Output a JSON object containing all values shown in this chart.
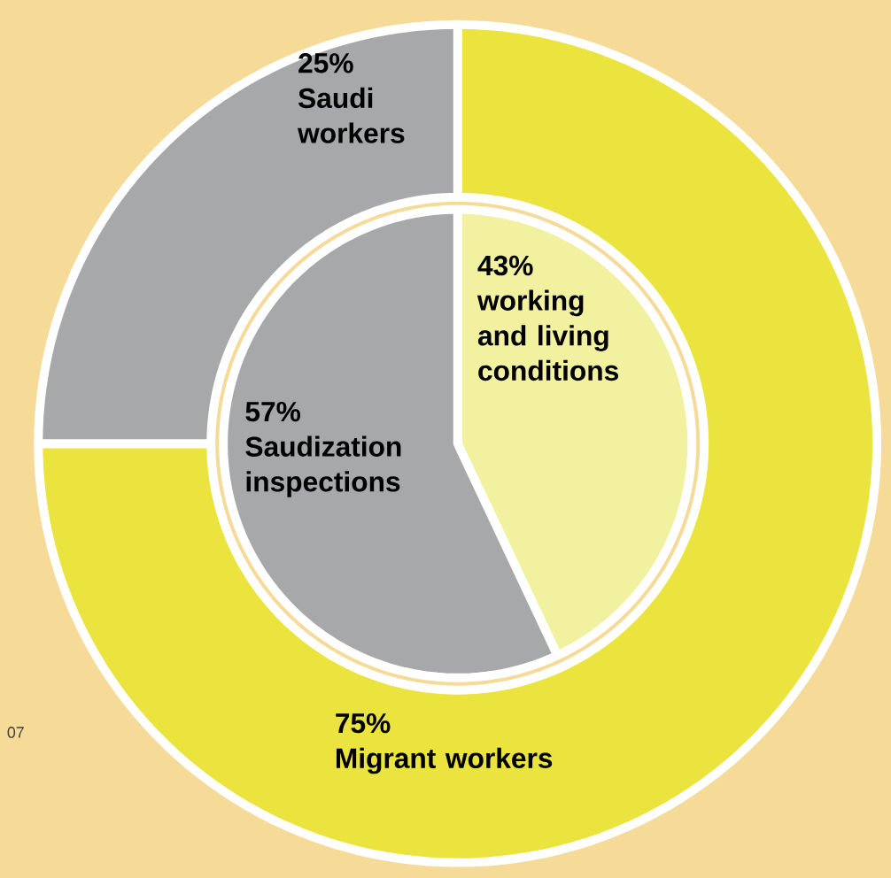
{
  "chart_data": [
    {
      "type": "donut",
      "categories": [
        "Migrant workers",
        "Saudi workers"
      ],
      "values": [
        75,
        25
      ],
      "colors": [
        "#ece43e",
        "#a6a8a9"
      ],
      "value_labels": [
        "75%",
        "25%"
      ],
      "annotations": [
        "07"
      ]
    },
    {
      "type": "pie",
      "categories": [
        "working and living conditions",
        "Saudization inspections"
      ],
      "values": [
        43,
        57
      ],
      "colors": [
        "#f2f1a0",
        "#a6a8a9"
      ],
      "value_labels": [
        "43%",
        "57%"
      ]
    }
  ]
}
